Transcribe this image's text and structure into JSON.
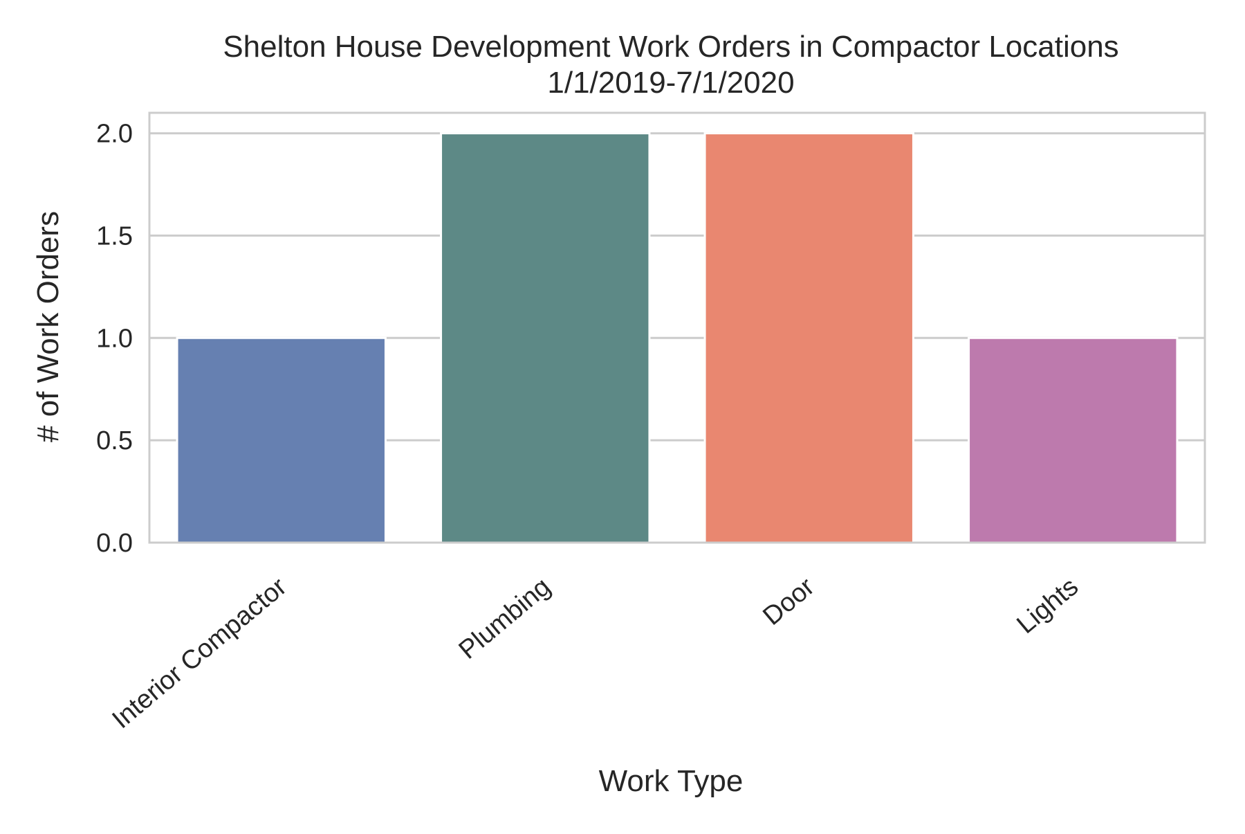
{
  "chart_data": {
    "type": "bar",
    "title": "Shelton House Development Work Orders in Compactor Locations",
    "subtitle": "1/1/2019-7/1/2020",
    "xlabel": "Work Type",
    "ylabel": "# of Work Orders",
    "categories": [
      "Interior Compactor",
      "Plumbing",
      "Door",
      "Lights"
    ],
    "values": [
      1,
      2,
      2,
      1
    ],
    "colors": [
      "#6680b1",
      "#5d8986",
      "#e98770",
      "#bd7aad"
    ],
    "ylim": [
      0,
      2.1
    ],
    "yticks": [
      {
        "value": 0.0,
        "label": "0.0"
      },
      {
        "value": 0.5,
        "label": "0.5"
      },
      {
        "value": 1.0,
        "label": "1.0"
      },
      {
        "value": 1.5,
        "label": "1.5"
      },
      {
        "value": 2.0,
        "label": "2.0"
      }
    ],
    "grid": true,
    "legend": "none"
  }
}
